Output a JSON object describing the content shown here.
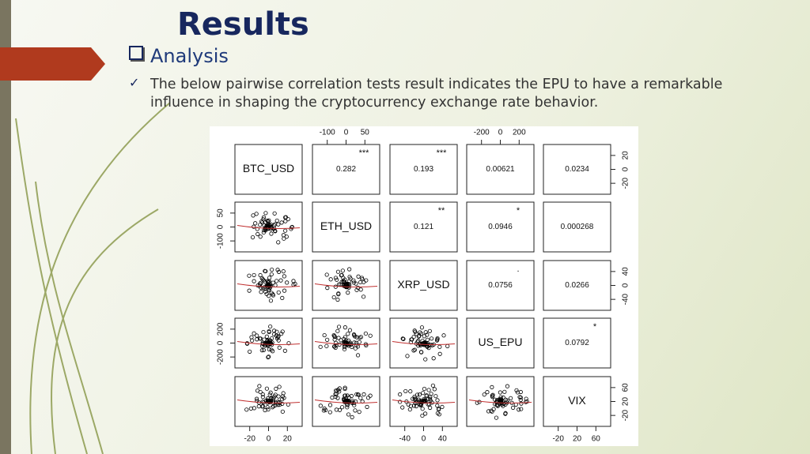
{
  "header": {
    "title": "Results"
  },
  "section": {
    "heading": "Analysis",
    "bullet": "The below pairwise correlation tests result indicates the EPU to have a remarkable influence in shaping the cryptocurrency exchange rate behavior."
  },
  "matrix": {
    "variables": [
      "BTC_USD",
      "ETH_USD",
      "XRP_USD",
      "US_EPU",
      "VIX"
    ],
    "correlations": [
      {
        "value": "0.282",
        "stars": "***"
      },
      {
        "value": "0.193",
        "stars": "***"
      },
      {
        "value": "0.00621"
      },
      {
        "value": "0.0234"
      },
      {
        "value": "0.121",
        "stars": "**"
      },
      {
        "value": "0.0946",
        "stars": "*"
      },
      {
        "value": "0.000268"
      },
      {
        "value": "0.0756",
        "stars": "."
      },
      {
        "value": "0.0266"
      },
      {
        "value": "0.0792",
        "stars": "*"
      }
    ],
    "axes": {
      "top": [
        [
          "-100",
          "0",
          "50"
        ],
        [
          "-200",
          "0",
          "200"
        ]
      ],
      "bottom": [
        [
          "-20",
          "0",
          "20"
        ],
        [
          "-40",
          "0",
          "40"
        ],
        [
          "-20",
          "20",
          "60"
        ]
      ],
      "left": [
        [
          "50",
          "0",
          "-100"
        ],
        [
          "200",
          "0",
          "-200"
        ]
      ],
      "right": [
        [
          "20",
          "0",
          "-20"
        ],
        [
          "40",
          "0",
          "-40"
        ],
        [
          "60",
          "20",
          "-20"
        ]
      ]
    }
  }
}
